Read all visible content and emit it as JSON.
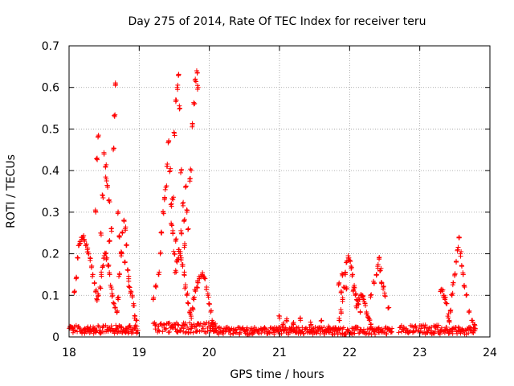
{
  "chart_data": {
    "type": "scatter",
    "title": "Day 275 of 2014, Rate Of TEC Index for receiver teru",
    "xlabel": "GPS time / hours",
    "ylabel": "ROTI / TECUs",
    "xlim": [
      18,
      24
    ],
    "ylim": [
      0,
      0.7
    ],
    "x_ticks": [
      "18",
      "19",
      "20",
      "21",
      "22",
      "23",
      "24"
    ],
    "y_ticks": [
      "0",
      "0.1",
      "0.2",
      "0.3",
      "0.4",
      "0.5",
      "0.6",
      "0.7"
    ],
    "grid": true,
    "marker": "+",
    "color": "#ff0000",
    "series": [
      {
        "name": "ROTI",
        "points": [
          [
            18.05,
            0.02
          ],
          [
            18.08,
            0.11
          ],
          [
            18.1,
            0.14
          ],
          [
            18.12,
            0.19
          ],
          [
            18.14,
            0.22
          ],
          [
            18.16,
            0.23
          ],
          [
            18.18,
            0.235
          ],
          [
            18.2,
            0.24
          ],
          [
            18.22,
            0.23
          ],
          [
            18.24,
            0.22
          ],
          [
            18.26,
            0.21
          ],
          [
            18.28,
            0.2
          ],
          [
            18.3,
            0.19
          ],
          [
            18.32,
            0.17
          ],
          [
            18.34,
            0.15
          ],
          [
            18.36,
            0.13
          ],
          [
            18.38,
            0.11
          ],
          [
            18.4,
            0.09
          ],
          [
            18.42,
            0.1
          ],
          [
            18.44,
            0.12
          ],
          [
            18.46,
            0.15
          ],
          [
            18.48,
            0.17
          ],
          [
            18.5,
            0.19
          ],
          [
            18.52,
            0.2
          ],
          [
            18.54,
            0.19
          ],
          [
            18.56,
            0.17
          ],
          [
            18.58,
            0.15
          ],
          [
            18.6,
            0.12
          ],
          [
            18.62,
            0.1
          ],
          [
            18.64,
            0.08
          ],
          [
            18.66,
            0.07
          ],
          [
            18.68,
            0.06
          ],
          [
            18.7,
            0.09
          ],
          [
            18.72,
            0.15
          ],
          [
            18.74,
            0.2
          ],
          [
            18.76,
            0.25
          ],
          [
            18.78,
            0.28
          ],
          [
            18.8,
            0.26
          ],
          [
            18.82,
            0.22
          ],
          [
            18.84,
            0.16
          ],
          [
            18.86,
            0.12
          ],
          [
            18.88,
            0.11
          ],
          [
            18.9,
            0.1
          ],
          [
            18.92,
            0.08
          ],
          [
            18.94,
            0.05
          ],
          [
            18.96,
            0.04
          ],
          [
            18.42,
            0.485
          ],
          [
            18.45,
            0.25
          ],
          [
            18.48,
            0.34
          ],
          [
            18.5,
            0.44
          ],
          [
            18.52,
            0.41
          ],
          [
            18.53,
            0.38
          ],
          [
            18.55,
            0.36
          ],
          [
            18.57,
            0.33
          ],
          [
            18.6,
            0.26
          ],
          [
            18.63,
            0.45
          ],
          [
            18.65,
            0.53
          ],
          [
            18.66,
            0.605
          ],
          [
            18.7,
            0.3
          ],
          [
            18.72,
            0.24
          ],
          [
            18.75,
            0.2
          ],
          [
            18.8,
            0.18
          ],
          [
            18.85,
            0.14
          ],
          [
            18.4,
            0.43
          ],
          [
            18.38,
            0.3
          ],
          [
            18.58,
            0.23
          ],
          [
            19.2,
            0.09
          ],
          [
            19.24,
            0.12
          ],
          [
            19.28,
            0.15
          ],
          [
            19.3,
            0.2
          ],
          [
            19.32,
            0.25
          ],
          [
            19.34,
            0.3
          ],
          [
            19.36,
            0.33
          ],
          [
            19.38,
            0.36
          ],
          [
            19.4,
            0.41
          ],
          [
            19.42,
            0.47
          ],
          [
            19.44,
            0.4
          ],
          [
            19.46,
            0.32
          ],
          [
            19.48,
            0.25
          ],
          [
            19.5,
            0.2
          ],
          [
            19.52,
            0.16
          ],
          [
            19.54,
            0.18
          ],
          [
            19.56,
            0.19
          ],
          [
            19.58,
            0.2
          ],
          [
            19.6,
            0.19
          ],
          [
            19.62,
            0.17
          ],
          [
            19.64,
            0.15
          ],
          [
            19.66,
            0.12
          ],
          [
            19.68,
            0.1
          ],
          [
            19.7,
            0.08
          ],
          [
            19.72,
            0.06
          ],
          [
            19.74,
            0.05
          ],
          [
            19.76,
            0.07
          ],
          [
            19.78,
            0.09
          ],
          [
            19.8,
            0.11
          ],
          [
            19.82,
            0.12
          ],
          [
            19.84,
            0.13
          ],
          [
            19.86,
            0.14
          ],
          [
            19.88,
            0.145
          ],
          [
            19.9,
            0.15
          ],
          [
            19.92,
            0.145
          ],
          [
            19.94,
            0.14
          ],
          [
            19.96,
            0.12
          ],
          [
            19.98,
            0.1
          ],
          [
            20.0,
            0.08
          ],
          [
            20.02,
            0.06
          ],
          [
            20.04,
            0.04
          ],
          [
            20.06,
            0.03
          ],
          [
            20.08,
            0.02
          ],
          [
            19.5,
            0.49
          ],
          [
            19.52,
            0.57
          ],
          [
            19.54,
            0.6
          ],
          [
            19.56,
            0.63
          ],
          [
            19.58,
            0.55
          ],
          [
            19.6,
            0.4
          ],
          [
            19.62,
            0.32
          ],
          [
            19.64,
            0.28
          ],
          [
            19.66,
            0.36
          ],
          [
            19.68,
            0.3
          ],
          [
            19.7,
            0.26
          ],
          [
            19.72,
            0.38
          ],
          [
            19.74,
            0.4
          ],
          [
            19.76,
            0.51
          ],
          [
            19.78,
            0.56
          ],
          [
            19.8,
            0.62
          ],
          [
            19.82,
            0.64
          ],
          [
            19.84,
            0.6
          ],
          [
            19.48,
            0.33
          ],
          [
            19.46,
            0.27
          ],
          [
            19.6,
            0.25
          ],
          [
            19.65,
            0.22
          ],
          [
            19.56,
            0.21
          ],
          [
            19.52,
            0.23
          ],
          [
            21.0,
            0.05
          ],
          [
            21.05,
            0.03
          ],
          [
            21.1,
            0.04
          ],
          [
            21.2,
            0.03
          ],
          [
            21.3,
            0.04
          ],
          [
            21.45,
            0.03
          ],
          [
            21.6,
            0.04
          ],
          [
            21.7,
            0.02
          ],
          [
            21.8,
            0.02
          ],
          [
            21.85,
            0.04
          ],
          [
            21.88,
            0.06
          ],
          [
            21.9,
            0.09
          ],
          [
            21.92,
            0.12
          ],
          [
            21.94,
            0.15
          ],
          [
            21.96,
            0.18
          ],
          [
            21.98,
            0.19
          ],
          [
            22.0,
            0.185
          ],
          [
            22.02,
            0.17
          ],
          [
            22.04,
            0.15
          ],
          [
            22.06,
            0.12
          ],
          [
            22.08,
            0.1
          ],
          [
            22.1,
            0.09
          ],
          [
            22.12,
            0.08
          ],
          [
            22.14,
            0.09
          ],
          [
            22.16,
            0.1
          ],
          [
            22.18,
            0.1
          ],
          [
            22.2,
            0.09
          ],
          [
            22.22,
            0.08
          ],
          [
            22.24,
            0.06
          ],
          [
            22.26,
            0.05
          ],
          [
            22.28,
            0.04
          ],
          [
            22.3,
            0.03
          ],
          [
            21.85,
            0.13
          ],
          [
            21.88,
            0.11
          ],
          [
            21.9,
            0.15
          ],
          [
            21.95,
            0.12
          ],
          [
            22.05,
            0.11
          ],
          [
            22.1,
            0.07
          ],
          [
            22.15,
            0.06
          ],
          [
            22.3,
            0.1
          ],
          [
            22.35,
            0.13
          ],
          [
            22.38,
            0.15
          ],
          [
            22.4,
            0.17
          ],
          [
            22.42,
            0.19
          ],
          [
            22.44,
            0.16
          ],
          [
            22.46,
            0.13
          ],
          [
            22.48,
            0.12
          ],
          [
            22.5,
            0.1
          ],
          [
            22.55,
            0.07
          ],
          [
            23.3,
            0.11
          ],
          [
            23.32,
            0.11
          ],
          [
            23.34,
            0.1
          ],
          [
            23.36,
            0.09
          ],
          [
            23.38,
            0.08
          ],
          [
            23.4,
            0.05
          ],
          [
            23.42,
            0.04
          ],
          [
            23.44,
            0.06
          ],
          [
            23.46,
            0.1
          ],
          [
            23.48,
            0.13
          ],
          [
            23.5,
            0.15
          ],
          [
            23.52,
            0.18
          ],
          [
            23.54,
            0.21
          ],
          [
            23.56,
            0.24
          ],
          [
            23.58,
            0.2
          ],
          [
            23.6,
            0.17
          ],
          [
            23.62,
            0.15
          ],
          [
            23.64,
            0.12
          ],
          [
            23.66,
            0.1
          ],
          [
            23.7,
            0.06
          ],
          [
            23.75,
            0.04
          ],
          [
            23.78,
            0.03
          ]
        ],
        "baseline": [
          {
            "range": [
              18.0,
              18.98
            ],
            "mean": 0.018,
            "jitter": 0.02
          },
          {
            "range": [
              19.2,
              20.1
            ],
            "mean": 0.022,
            "jitter": 0.025
          },
          {
            "range": [
              20.1,
              22.6
            ],
            "mean": 0.015,
            "jitter": 0.018
          },
          {
            "range": [
              22.7,
              23.3
            ],
            "mean": 0.018,
            "jitter": 0.022
          },
          {
            "range": [
              23.3,
              23.8
            ],
            "mean": 0.015,
            "jitter": 0.018
          }
        ]
      }
    ]
  }
}
